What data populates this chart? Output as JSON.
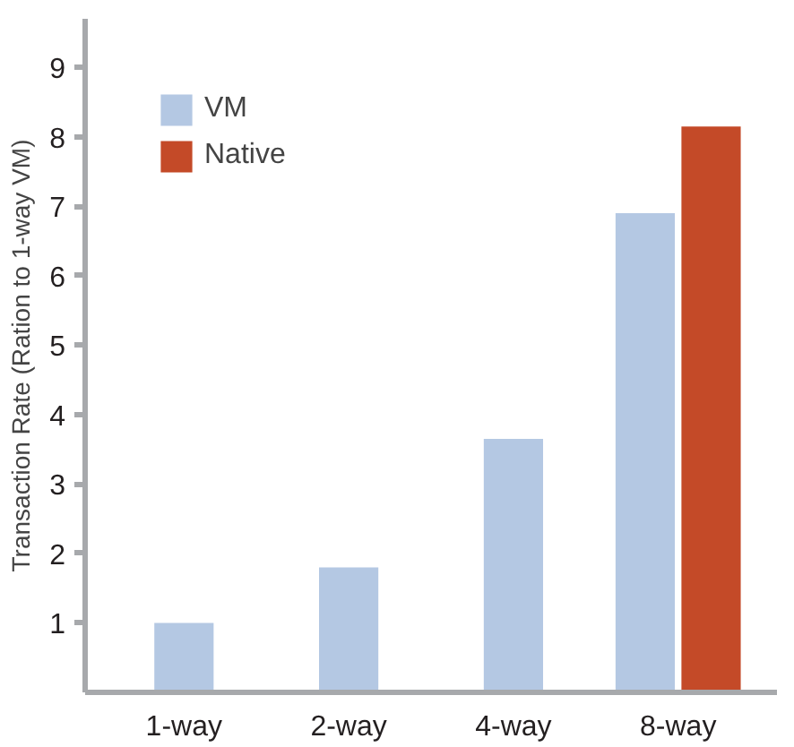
{
  "chart_data": {
    "type": "bar",
    "ylabel": "Transaction Rate (Ration to 1-way VM)",
    "categories": [
      "1-way",
      "2-way",
      "4-way",
      "8-way"
    ],
    "series": [
      {
        "name": "VM",
        "color": "#b4c8e3",
        "values": [
          1.0,
          1.8,
          3.65,
          6.9
        ]
      },
      {
        "name": "Native",
        "color": "#c44a28",
        "values": [
          null,
          null,
          null,
          8.15
        ]
      }
    ],
    "ylim": [
      0,
      9.7
    ],
    "yticks": [
      1,
      2,
      3,
      4,
      5,
      6,
      7,
      8,
      9
    ],
    "grid": false,
    "legend": "top left"
  }
}
